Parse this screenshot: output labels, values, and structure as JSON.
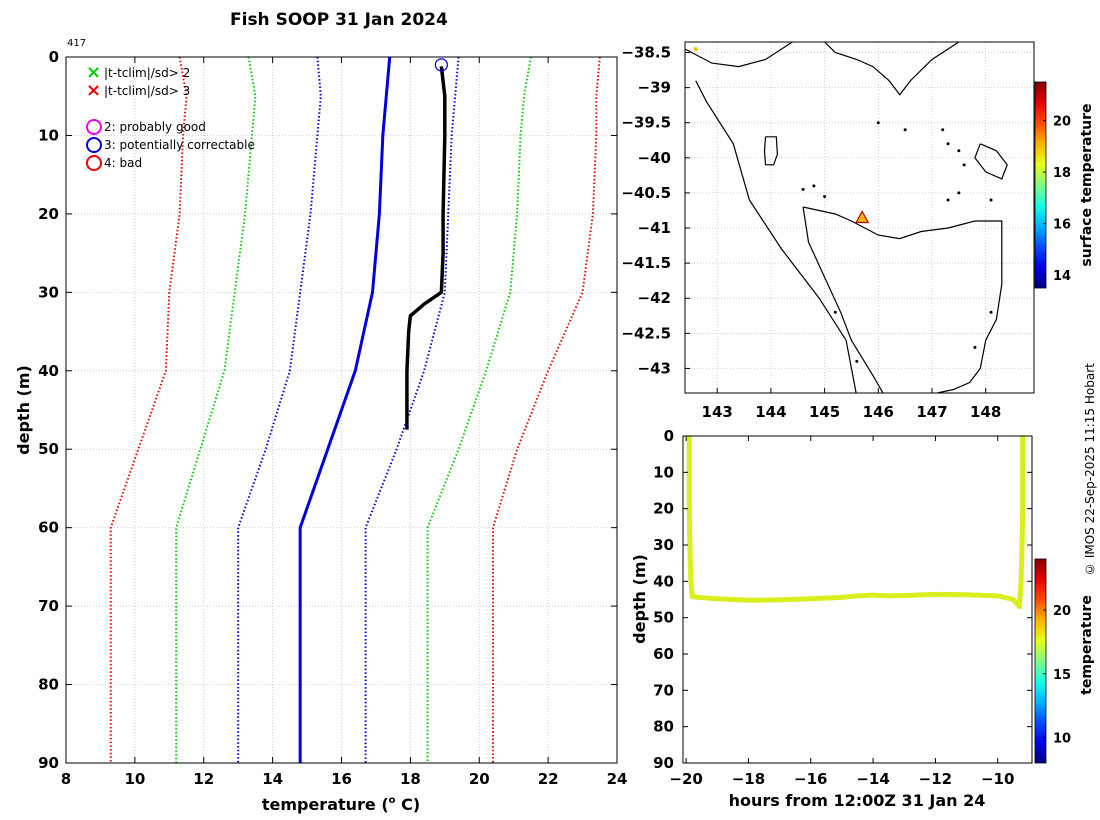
{
  "title": "Fish SOOP 31 Jan 2024",
  "side_credit": "© IMOS 22-Sep-2025 11:15 Hobart",
  "chart_data": [
    {
      "type": "line",
      "name": "temperature-profile",
      "xlabel": "temperature (",
      "xlabel_sup": "o",
      "xlabel_tail": " C)",
      "ylabel": "depth (m)",
      "xlim": [
        8,
        24
      ],
      "ylim": [
        90,
        0
      ],
      "xticks": [
        8,
        10,
        12,
        14,
        16,
        18,
        20,
        22,
        24
      ],
      "yticks": [
        0,
        10,
        20,
        30,
        40,
        50,
        60,
        70,
        80,
        90
      ],
      "corner_label": "417",
      "legend": {
        "flags": [
          {
            "symbol": "×",
            "color": "#00cc00",
            "label": "|t-tclim|/sd> 2"
          },
          {
            "symbol": "×",
            "color": "#ee0000",
            "label": "|t-tclim|/sd> 3"
          }
        ],
        "qc": [
          {
            "color": "#ee00ee",
            "label": "2: probably good"
          },
          {
            "color": "#0000dd",
            "label": "3: potentially correctable"
          },
          {
            "color": "#ee0000",
            "label": "4: bad"
          }
        ]
      },
      "series": [
        {
          "name": "climatology-mean",
          "color": "#0000dd",
          "style": "solid",
          "width": 3,
          "points": [
            [
              17.4,
              0
            ],
            [
              17.3,
              5
            ],
            [
              17.2,
              10
            ],
            [
              17.1,
              20
            ],
            [
              16.9,
              30
            ],
            [
              16.4,
              40
            ],
            [
              15.6,
              50
            ],
            [
              14.8,
              60
            ],
            [
              14.8,
              70
            ],
            [
              14.8,
              80
            ],
            [
              14.8,
              90
            ]
          ]
        },
        {
          "name": "minus-1sd",
          "color": "#0000dd",
          "style": "dotted",
          "width": 2,
          "points": [
            [
              15.3,
              0
            ],
            [
              15.4,
              5
            ],
            [
              15.3,
              10
            ],
            [
              15.1,
              20
            ],
            [
              14.8,
              30
            ],
            [
              14.5,
              40
            ],
            [
              13.8,
              50
            ],
            [
              13.0,
              60
            ],
            [
              13.0,
              70
            ],
            [
              13.0,
              80
            ],
            [
              13.0,
              90
            ]
          ]
        },
        {
          "name": "plus-1sd",
          "color": "#0000dd",
          "style": "dotted",
          "width": 2,
          "points": [
            [
              19.4,
              0
            ],
            [
              19.3,
              5
            ],
            [
              19.2,
              10
            ],
            [
              19.1,
              20
            ],
            [
              19.0,
              30
            ],
            [
              18.4,
              40
            ],
            [
              17.6,
              50
            ],
            [
              16.7,
              60
            ],
            [
              16.7,
              70
            ],
            [
              16.7,
              80
            ],
            [
              16.7,
              90
            ]
          ]
        },
        {
          "name": "minus-2sd",
          "color": "#00cc00",
          "style": "dotted",
          "width": 2,
          "points": [
            [
              13.3,
              0
            ],
            [
              13.5,
              5
            ],
            [
              13.4,
              10
            ],
            [
              13.2,
              20
            ],
            [
              12.9,
              30
            ],
            [
              12.6,
              40
            ],
            [
              11.9,
              50
            ],
            [
              11.2,
              60
            ],
            [
              11.2,
              70
            ],
            [
              11.2,
              80
            ],
            [
              11.2,
              90
            ]
          ]
        },
        {
          "name": "plus-2sd",
          "color": "#00cc00",
          "style": "dotted",
          "width": 2,
          "points": [
            [
              21.5,
              0
            ],
            [
              21.3,
              5
            ],
            [
              21.2,
              10
            ],
            [
              21.1,
              20
            ],
            [
              20.9,
              30
            ],
            [
              20.2,
              40
            ],
            [
              19.4,
              50
            ],
            [
              18.5,
              60
            ],
            [
              18.5,
              70
            ],
            [
              18.5,
              80
            ],
            [
              18.5,
              90
            ]
          ]
        },
        {
          "name": "minus-3sd",
          "color": "#ee0000",
          "style": "dotted",
          "width": 2,
          "points": [
            [
              11.3,
              0
            ],
            [
              11.5,
              5
            ],
            [
              11.4,
              10
            ],
            [
              11.3,
              20
            ],
            [
              11.0,
              30
            ],
            [
              10.9,
              40
            ],
            [
              10.1,
              50
            ],
            [
              9.3,
              60
            ],
            [
              9.3,
              70
            ],
            [
              9.3,
              80
            ],
            [
              9.3,
              90
            ]
          ]
        },
        {
          "name": "plus-3sd",
          "color": "#ee0000",
          "style": "dotted",
          "width": 2,
          "points": [
            [
              23.5,
              0
            ],
            [
              23.4,
              5
            ],
            [
              23.4,
              10
            ],
            [
              23.3,
              20
            ],
            [
              23.0,
              30
            ],
            [
              22.0,
              40
            ],
            [
              21.1,
              50
            ],
            [
              20.4,
              60
            ],
            [
              20.4,
              70
            ],
            [
              20.4,
              80
            ],
            [
              20.4,
              90
            ]
          ]
        },
        {
          "name": "observed-profile",
          "color": "#000000",
          "style": "solid",
          "width": 3.5,
          "points": [
            [
              18.9,
              1.2
            ],
            [
              19.0,
              5
            ],
            [
              19.0,
              10
            ],
            [
              18.95,
              20
            ],
            [
              18.95,
              25
            ],
            [
              18.9,
              30
            ],
            [
              18.4,
              31.5
            ],
            [
              18.0,
              33
            ],
            [
              17.95,
              35
            ],
            [
              17.9,
              40
            ],
            [
              17.9,
              47.5
            ]
          ]
        }
      ],
      "qc_markers": [
        {
          "x": 18.9,
          "y": 1.0,
          "flag": 3
        }
      ]
    },
    {
      "type": "map",
      "name": "location-map",
      "colorbar_label": "surface temperature",
      "xlim": [
        142.4,
        148.9
      ],
      "ylim": [
        -43.35,
        -38.35
      ],
      "xticks": [
        143,
        144,
        145,
        146,
        147,
        148
      ],
      "yticks": [
        -38.5,
        -39,
        -39.5,
        -40,
        -40.5,
        -41,
        -41.5,
        -42,
        -42.5,
        -43
      ],
      "cbar_range": [
        13.5,
        21.5
      ],
      "cbar_ticks": [
        14,
        16,
        18,
        20
      ],
      "track_point": {
        "lon": 145.7,
        "lat": -40.85,
        "temp": 19
      },
      "start_point": {
        "lon": 142.6,
        "lat": -38.45,
        "temp": 19
      }
    },
    {
      "type": "scatter",
      "name": "time-depth-section",
      "xlabel": "hours from 12:00Z 31 Jan 24",
      "ylabel": "depth (m)",
      "colorbar_label": "temperature",
      "xlim": [
        -20.1,
        -8.9
      ],
      "ylim": [
        90,
        0
      ],
      "xticks": [
        -20,
        -18,
        -16,
        -14,
        -12,
        -10
      ],
      "yticks": [
        0,
        10,
        20,
        30,
        40,
        50,
        60,
        70,
        80,
        90
      ],
      "cbar_range": [
        8,
        24
      ],
      "cbar_ticks": [
        10,
        15,
        20
      ],
      "series": [
        {
          "name": "descent",
          "color": "#d9ee1c",
          "points": [
            [
              -19.9,
              0.5
            ],
            [
              -19.9,
              10
            ],
            [
              -19.9,
              20
            ],
            [
              -19.88,
              30
            ],
            [
              -19.85,
              40
            ],
            [
              -19.8,
              44
            ]
          ]
        },
        {
          "name": "bottom",
          "color": "#d9ee1c",
          "points": [
            [
              -19.8,
              44.2
            ],
            [
              -19.5,
              44.5
            ],
            [
              -19,
              44.8
            ],
            [
              -18.5,
              45
            ],
            [
              -18,
              45.2
            ],
            [
              -17,
              45.1
            ],
            [
              -16,
              44.8
            ],
            [
              -15,
              44.4
            ],
            [
              -14.5,
              44
            ],
            [
              -14,
              43.8
            ],
            [
              -13.5,
              44
            ],
            [
              -13,
              43.9
            ],
            [
              -12,
              43.6
            ],
            [
              -11,
              43.7
            ],
            [
              -10,
              44
            ],
            [
              -9.5,
              45
            ],
            [
              -9.3,
              47
            ]
          ]
        },
        {
          "name": "ascent",
          "color": "#d9ee1c",
          "points": [
            [
              -9.3,
              46.5
            ],
            [
              -9.25,
              40
            ],
            [
              -9.22,
              30
            ],
            [
              -9.2,
              20
            ],
            [
              -9.2,
              10
            ],
            [
              -9.2,
              0.5
            ]
          ]
        }
      ]
    }
  ]
}
